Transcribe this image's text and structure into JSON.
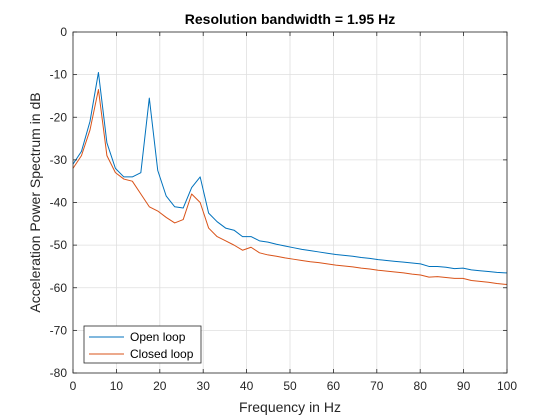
{
  "chart_data": {
    "type": "line",
    "title": "Resolution bandwidth = 1.95 Hz",
    "xlabel": "Frequency in Hz",
    "ylabel": "Acceleration Power Spectrum in dB",
    "xlim": [
      0,
      100
    ],
    "ylim": [
      -80,
      0
    ],
    "xticks": [
      0,
      10,
      20,
      30,
      40,
      50,
      60,
      70,
      80,
      90,
      100
    ],
    "yticks": [
      -80,
      -70,
      -60,
      -50,
      -40,
      -30,
      -20,
      -10,
      0
    ],
    "grid": true,
    "legend_position": "bottom-left",
    "series": [
      {
        "name": "Open loop",
        "color": "#0072BD",
        "x": [
          0,
          1.95,
          3.91,
          5.86,
          7.81,
          9.77,
          11.72,
          13.67,
          15.63,
          17.58,
          19.53,
          21.48,
          23.44,
          25.39,
          27.34,
          29.3,
          31.25,
          33.2,
          35.16,
          37.11,
          39.06,
          41.02,
          42.97,
          44.92,
          46.88,
          48.83,
          50.78,
          52.73,
          54.69,
          56.64,
          58.59,
          60.55,
          62.5,
          64.45,
          66.41,
          68.36,
          70.31,
          72.27,
          74.22,
          76.17,
          78.13,
          80.08,
          82.03,
          83.98,
          85.94,
          87.89,
          89.84,
          91.8,
          93.75,
          95.7,
          97.66,
          99.61,
          100
        ],
        "values": [
          -31,
          -28,
          -21,
          -9.5,
          -26,
          -32,
          -34,
          -34,
          -33,
          -15.5,
          -32.5,
          -38.5,
          -41,
          -41.3,
          -36.5,
          -34,
          -42.5,
          -44.5,
          -46,
          -46.5,
          -48,
          -48,
          -49,
          -49.3,
          -49.8,
          -50.2,
          -50.6,
          -51,
          -51.3,
          -51.6,
          -51.9,
          -52.2,
          -52.4,
          -52.6,
          -52.9,
          -53.1,
          -53.4,
          -53.6,
          -53.8,
          -54,
          -54.2,
          -54.4,
          -55,
          -55,
          -55.2,
          -55.5,
          -55.4,
          -55.8,
          -56,
          -56.2,
          -56.4,
          -56.5,
          -56.5
        ]
      },
      {
        "name": "Closed loop",
        "color": "#D95319",
        "x": [
          0,
          1.95,
          3.91,
          5.86,
          7.81,
          9.77,
          11.72,
          13.67,
          15.63,
          17.58,
          19.53,
          21.48,
          23.44,
          25.39,
          27.34,
          29.3,
          31.25,
          33.2,
          35.16,
          37.11,
          39.06,
          41.02,
          42.97,
          44.92,
          46.88,
          48.83,
          50.78,
          52.73,
          54.69,
          56.64,
          58.59,
          60.55,
          62.5,
          64.45,
          66.41,
          68.36,
          70.31,
          72.27,
          74.22,
          76.17,
          78.13,
          80.08,
          82.03,
          83.98,
          85.94,
          87.89,
          89.84,
          91.8,
          93.75,
          95.7,
          97.66,
          99.61,
          100
        ],
        "values": [
          -32,
          -29,
          -23,
          -13.5,
          -29,
          -33,
          -34.5,
          -35,
          -38,
          -41,
          -42,
          -43.5,
          -44.8,
          -44,
          -38,
          -40,
          -46,
          -48,
          -49,
          -50,
          -51.2,
          -50.5,
          -51.8,
          -52.3,
          -52.6,
          -53,
          -53.3,
          -53.6,
          -53.9,
          -54.1,
          -54.4,
          -54.7,
          -54.9,
          -55.1,
          -55.4,
          -55.6,
          -55.9,
          -56.1,
          -56.3,
          -56.5,
          -56.8,
          -57,
          -57.5,
          -57.4,
          -57.6,
          -57.8,
          -57.8,
          -58.3,
          -58.5,
          -58.7,
          -59,
          -59.2,
          -59.2
        ]
      }
    ]
  }
}
